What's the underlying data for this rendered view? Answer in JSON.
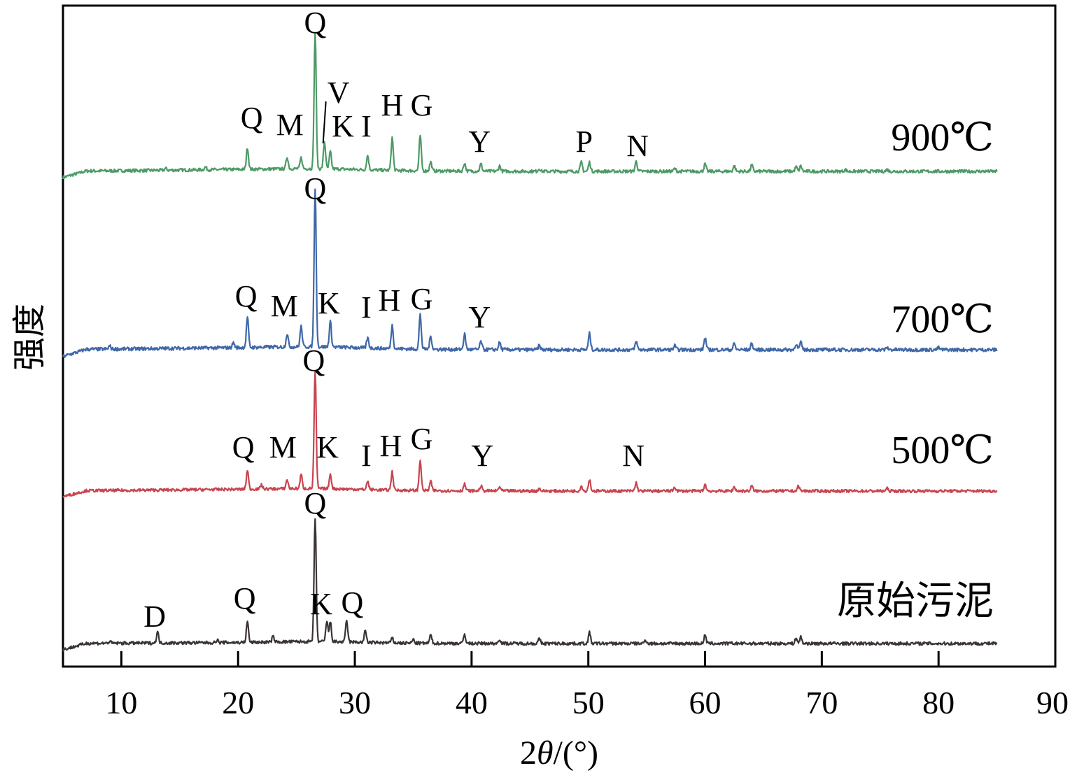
{
  "chart_data": {
    "type": "line",
    "xlabel_prefix": "2",
    "xlabel_theta": "θ",
    "xlabel_suffix": "/(°)",
    "ylabel": "强度",
    "xlim": [
      5,
      90
    ],
    "xticks": [
      10,
      20,
      30,
      40,
      50,
      60,
      70,
      80,
      90
    ],
    "xtick_labels": [
      "10",
      "20",
      "30",
      "40",
      "50",
      "60",
      "70",
      "80",
      "90"
    ],
    "grid": false,
    "series": [
      {
        "name": "900℃",
        "color": "#4d9a66",
        "baseline": 0.2,
        "peaks": [
          {
            "x": 20.8,
            "h": 2.4,
            "label": "Q"
          },
          {
            "x": 24.2,
            "h": 1.3,
            "label": "M"
          },
          {
            "x": 26.6,
            "h": 15.0,
            "label": "Q"
          },
          {
            "x": 27.4,
            "h": 3.0,
            "label": "V"
          },
          {
            "x": 27.9,
            "h": 1.9,
            "label": "K"
          },
          {
            "x": 31.1,
            "h": 1.6,
            "label": "I"
          },
          {
            "x": 33.2,
            "h": 3.6,
            "label": "H"
          },
          {
            "x": 35.6,
            "h": 3.9,
            "label": "G"
          },
          {
            "x": 40.8,
            "h": 0.8,
            "label": "Y"
          },
          {
            "x": 49.4,
            "h": 1.0,
            "label": "P"
          },
          {
            "x": 54.1,
            "h": 1.1,
            "label": "N"
          },
          {
            "x": 25.4,
            "h": 1.2
          },
          {
            "x": 36.5,
            "h": 1.0
          },
          {
            "x": 39.4,
            "h": 0.9
          },
          {
            "x": 42.4,
            "h": 0.6
          },
          {
            "x": 50.1,
            "h": 1.0
          },
          {
            "x": 60.0,
            "h": 0.8
          },
          {
            "x": 62.5,
            "h": 0.6
          },
          {
            "x": 64.0,
            "h": 0.7
          },
          {
            "x": 67.8,
            "h": 0.5
          },
          {
            "x": 68.2,
            "h": 0.6
          },
          {
            "x": 17.2,
            "h": 0.3
          },
          {
            "x": 13.8,
            "h": 0.2
          },
          {
            "x": 45.8,
            "h": 0.3
          },
          {
            "x": 57.4,
            "h": 0.3
          },
          {
            "x": 72.0,
            "h": 0.2
          },
          {
            "x": 75.6,
            "h": 0.2
          }
        ]
      },
      {
        "name": "700℃",
        "color": "#4068a8",
        "baseline": 0.2,
        "peaks": [
          {
            "x": 20.8,
            "h": 3.0,
            "label": "Q"
          },
          {
            "x": 24.2,
            "h": 1.3,
            "label": "M"
          },
          {
            "x": 26.6,
            "h": 15.6,
            "label": "Q"
          },
          {
            "x": 27.9,
            "h": 2.5,
            "label": "K"
          },
          {
            "x": 31.1,
            "h": 1.0,
            "label": "I"
          },
          {
            "x": 33.2,
            "h": 2.3,
            "label": "H"
          },
          {
            "x": 35.6,
            "h": 3.4,
            "label": "G"
          },
          {
            "x": 40.8,
            "h": 0.8,
            "label": "Y"
          },
          {
            "x": 25.4,
            "h": 2.0
          },
          {
            "x": 36.5,
            "h": 1.3
          },
          {
            "x": 39.4,
            "h": 1.5
          },
          {
            "x": 42.4,
            "h": 0.7
          },
          {
            "x": 50.1,
            "h": 1.6
          },
          {
            "x": 54.1,
            "h": 0.8
          },
          {
            "x": 60.0,
            "h": 1.2
          },
          {
            "x": 62.5,
            "h": 0.6
          },
          {
            "x": 64.0,
            "h": 0.6
          },
          {
            "x": 67.8,
            "h": 0.6
          },
          {
            "x": 68.2,
            "h": 0.7
          },
          {
            "x": 19.6,
            "h": 0.5
          },
          {
            "x": 9.0,
            "h": 0.3
          },
          {
            "x": 45.8,
            "h": 0.4
          },
          {
            "x": 57.4,
            "h": 0.4
          },
          {
            "x": 75.6,
            "h": 0.2
          },
          {
            "x": 80.0,
            "h": 0.2
          }
        ]
      },
      {
        "name": "500℃",
        "color": "#c8454f",
        "baseline": 0.2,
        "peaks": [
          {
            "x": 20.8,
            "h": 2.3,
            "label": "Q"
          },
          {
            "x": 24.2,
            "h": 1.1,
            "label": "M"
          },
          {
            "x": 26.6,
            "h": 14.1,
            "label": "Q"
          },
          {
            "x": 27.9,
            "h": 1.8,
            "label": "K"
          },
          {
            "x": 31.1,
            "h": 1.0,
            "label": "I"
          },
          {
            "x": 33.2,
            "h": 2.2,
            "label": "H"
          },
          {
            "x": 35.6,
            "h": 3.7,
            "label": "G"
          },
          {
            "x": 40.8,
            "h": 0.6,
            "label": "Y"
          },
          {
            "x": 54.1,
            "h": 1.0,
            "label": "N"
          },
          {
            "x": 25.4,
            "h": 1.7
          },
          {
            "x": 36.5,
            "h": 1.1
          },
          {
            "x": 39.4,
            "h": 0.8
          },
          {
            "x": 42.4,
            "h": 0.5
          },
          {
            "x": 50.1,
            "h": 1.4
          },
          {
            "x": 49.4,
            "h": 0.6
          },
          {
            "x": 60.0,
            "h": 0.8
          },
          {
            "x": 62.5,
            "h": 0.5
          },
          {
            "x": 64.0,
            "h": 0.6
          },
          {
            "x": 68.0,
            "h": 0.6
          },
          {
            "x": 22.0,
            "h": 0.5
          },
          {
            "x": 45.8,
            "h": 0.3
          },
          {
            "x": 57.4,
            "h": 0.5
          },
          {
            "x": 75.6,
            "h": 0.3
          }
        ]
      },
      {
        "name": "原始污泥",
        "color": "#3a3434",
        "baseline": 0.1,
        "peaks": [
          {
            "x": 13.1,
            "h": 1.2,
            "label": "D"
          },
          {
            "x": 20.8,
            "h": 2.3,
            "label": "Q"
          },
          {
            "x": 26.6,
            "h": 13.6,
            "label": "Q"
          },
          {
            "x": 27.6,
            "h": 2.3,
            "label": "K"
          },
          {
            "x": 29.3,
            "h": 2.4,
            "label": "Q"
          },
          {
            "x": 27.9,
            "h": 2.2
          },
          {
            "x": 30.9,
            "h": 1.3
          },
          {
            "x": 23.0,
            "h": 0.6
          },
          {
            "x": 36.5,
            "h": 0.9
          },
          {
            "x": 39.4,
            "h": 1.0
          },
          {
            "x": 42.4,
            "h": 0.5
          },
          {
            "x": 45.8,
            "h": 0.5
          },
          {
            "x": 50.1,
            "h": 1.2
          },
          {
            "x": 54.9,
            "h": 0.4
          },
          {
            "x": 60.0,
            "h": 0.9
          },
          {
            "x": 67.8,
            "h": 0.6
          },
          {
            "x": 68.2,
            "h": 0.7
          },
          {
            "x": 18.2,
            "h": 0.3
          },
          {
            "x": 9.0,
            "h": 0.2
          },
          {
            "x": 33.2,
            "h": 0.5
          },
          {
            "x": 35.0,
            "h": 0.4
          }
        ]
      }
    ]
  }
}
